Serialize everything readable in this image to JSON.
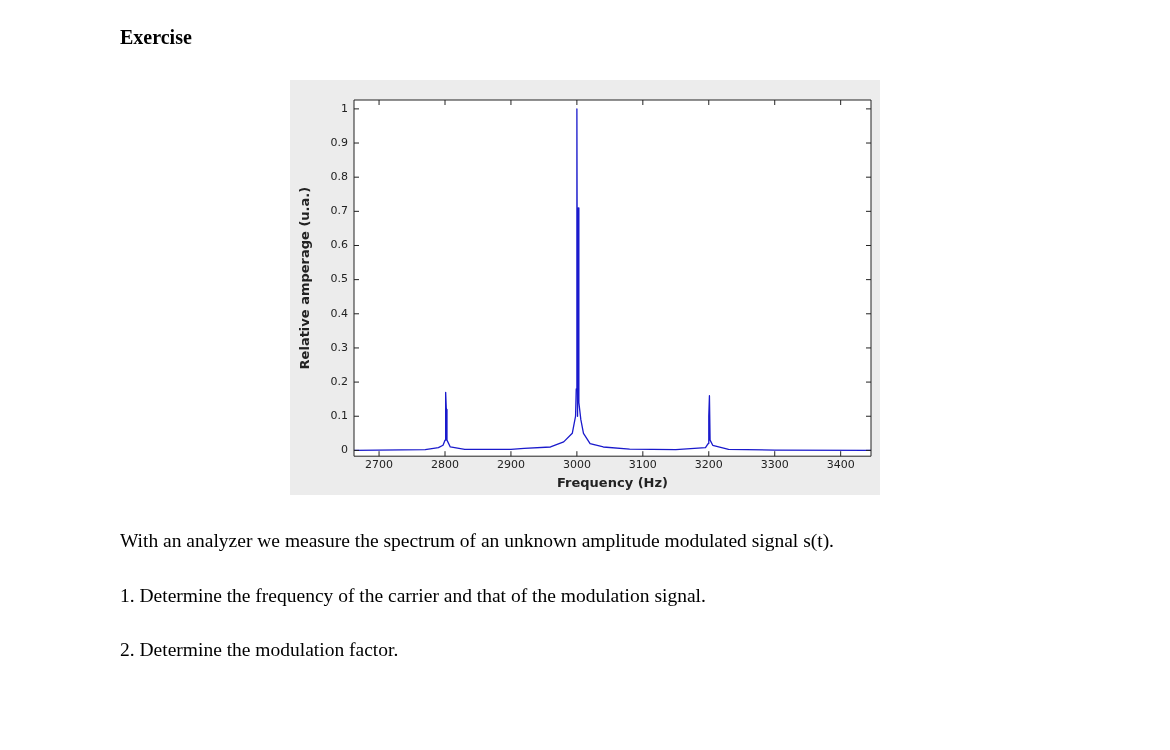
{
  "chart_data": {
    "type": "line",
    "title": "Exercise",
    "xlabel": "Frequency (Hz)",
    "ylabel": "Relative amperage (u.a.)",
    "x": [
      2662,
      2770,
      2790,
      2797,
      2800,
      2801,
      2802,
      2803,
      2808,
      2830,
      2900,
      2920,
      2960,
      2980,
      2993,
      2998,
      2999,
      3000,
      3001,
      3002,
      3003,
      3006,
      3010,
      3020,
      3040,
      3080,
      3150,
      3195,
      3199,
      3200,
      3201,
      3202,
      3206,
      3230,
      3300,
      3446
    ],
    "series": [
      {
        "color": "#1a1acc",
        "values": [
          0,
          0.002,
          0.008,
          0.015,
          0.03,
          0.17,
          0.12,
          0.03,
          0.01,
          0.003,
          0.003,
          0.006,
          0.01,
          0.025,
          0.05,
          0.1,
          0.18,
          1.0,
          0.1,
          0.71,
          0.14,
          0.09,
          0.05,
          0.02,
          0.01,
          0.004,
          0.002,
          0.008,
          0.02,
          0.1,
          0.16,
          0.03,
          0.015,
          0.003,
          0.001,
          0
        ]
      }
    ],
    "xlim": [
      2662,
      3446
    ],
    "xticks": [
      2700,
      2800,
      2900,
      3000,
      3100,
      3200,
      3300,
      3400
    ],
    "ylim": [
      -0.017,
      1.026
    ],
    "yticks": [
      0,
      0.1,
      0.2,
      0.3,
      0.4,
      0.5,
      0.6,
      0.7,
      0.8,
      0.9,
      1
    ],
    "marker": "none",
    "line_style": "solid",
    "legend": false,
    "annotations": [
      "With an analyzer we measure the spectrum of an unknown amplitude modulated signal s(t).",
      "1. Determine the frequency of the carrier and that of the modulation signal.",
      "2. Determine the modulation factor."
    ]
  }
}
